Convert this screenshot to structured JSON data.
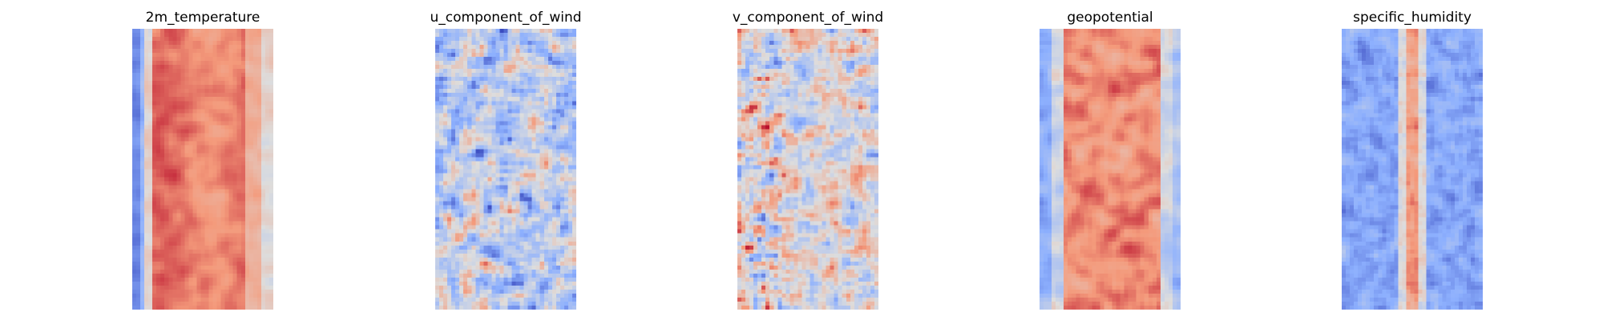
{
  "chart_data": [
    {
      "type": "heatmap",
      "title": "2m_temperature",
      "colormap": "coolwarm",
      "axes_visible": false,
      "grid": false,
      "legend": "none",
      "grid_shape": [
        70,
        35
      ],
      "value_range": [
        -1,
        1
      ],
      "pattern": "cold (blue) strips along left edge, broad warm (red) band across the center, slightly cooler near right edge"
    },
    {
      "type": "heatmap",
      "title": "u_component_of_wind",
      "colormap": "coolwarm",
      "axes_visible": false,
      "grid": false,
      "legend": "none",
      "grid_shape": [
        70,
        35
      ],
      "value_range": [
        -1,
        1
      ],
      "pattern": "mostly light blue with scattered small red and blue streaks"
    },
    {
      "type": "heatmap",
      "title": "v_component_of_wind",
      "colormap": "coolwarm",
      "axes_visible": false,
      "grid": false,
      "legend": "none",
      "grid_shape": [
        70,
        35
      ],
      "value_range": [
        -1,
        1
      ],
      "pattern": "near-neutral gray background with small alternating red and blue patches, stronger at left edge"
    },
    {
      "type": "heatmap",
      "title": "geopotential",
      "colormap": "coolwarm",
      "axes_visible": false,
      "grid": false,
      "legend": "none",
      "grid_shape": [
        70,
        35
      ],
      "value_range": [
        -1,
        1
      ],
      "pattern": "blue margins on left and right, wide red band in the center"
    },
    {
      "type": "heatmap",
      "title": "specific_humidity",
      "colormap": "coolwarm",
      "axes_visible": false,
      "grid": false,
      "legend": "none",
      "grid_shape": [
        70,
        35
      ],
      "value_range": [
        -1,
        1
      ],
      "pattern": "predominantly blue with a narrow red vertical streak through the center"
    }
  ]
}
